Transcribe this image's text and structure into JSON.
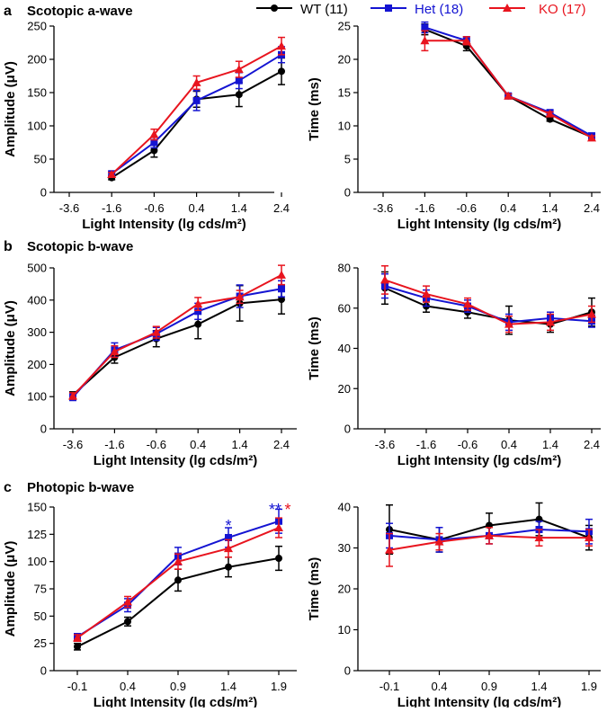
{
  "legend": {
    "position": "top-center",
    "entries": [
      {
        "label": "WT (11)",
        "color": "#000000",
        "marker": "circle"
      },
      {
        "label": "Het (18)",
        "color": "#1414d2",
        "marker": "square"
      },
      {
        "label": "KO (17)",
        "color": "#e8141e",
        "marker": "triangle"
      }
    ]
  },
  "panels": [
    {
      "letter": "a",
      "title": "Scotopic a-wave"
    },
    {
      "letter": "b",
      "title": "Scotopic b-wave"
    },
    {
      "letter": "c",
      "title": "Photopic b-wave"
    }
  ],
  "chart_data": [
    {
      "type": "line",
      "panel": "a",
      "title": "Scotopic a-wave",
      "xlabel": "Light Intensity (lg cds/m²)",
      "ylabel": "Amplitude (μV)",
      "categories": [
        "-3.6",
        "-1.6",
        "-0.6",
        "0.4",
        "1.4",
        "2.4"
      ],
      "ylim": [
        0,
        250
      ],
      "yticks": [
        0,
        50,
        100,
        150,
        200,
        250
      ],
      "series": [
        {
          "name": "WT (11)",
          "color": "#000000",
          "marker": "circle",
          "values": [
            null,
            22,
            63,
            140,
            147,
            182
          ],
          "errors": [
            null,
            3,
            10,
            12,
            18,
            20
          ]
        },
        {
          "name": "Het (18)",
          "color": "#1414d2",
          "marker": "square",
          "values": [
            null,
            28,
            75,
            138,
            168,
            207
          ],
          "errors": [
            null,
            3,
            8,
            15,
            12,
            12
          ]
        },
        {
          "name": "KO (17)",
          "color": "#e8141e",
          "marker": "triangle",
          "values": [
            null,
            27,
            87,
            165,
            185,
            220
          ],
          "errors": [
            null,
            3,
            8,
            10,
            12,
            13
          ]
        }
      ],
      "annotations": []
    },
    {
      "type": "line",
      "panel": "a",
      "xlabel": "Light Intensity (lg cds/m²)",
      "ylabel": "Time (ms)",
      "categories": [
        "-3.6",
        "-1.6",
        "-0.6",
        "0.4",
        "1.4",
        "2.4"
      ],
      "ylim": [
        0,
        25
      ],
      "yticks": [
        0,
        5,
        10,
        15,
        20,
        25
      ],
      "series": [
        {
          "name": "WT (11)",
          "color": "#000000",
          "marker": "circle",
          "values": [
            null,
            24.5,
            22,
            14.5,
            11,
            8.3
          ],
          "errors": [
            null,
            0.8,
            0.7,
            0.3,
            0.3,
            0.3
          ]
        },
        {
          "name": "Het (18)",
          "color": "#1414d2",
          "marker": "square",
          "values": [
            null,
            24.8,
            22.8,
            14.5,
            12,
            8.5
          ],
          "errors": [
            null,
            0.8,
            0.6,
            0.3,
            0.3,
            0.3
          ]
        },
        {
          "name": "KO (17)",
          "color": "#e8141e",
          "marker": "triangle",
          "values": [
            null,
            22.8,
            22.8,
            14.5,
            11.8,
            8.2
          ],
          "errors": [
            null,
            1.5,
            0.6,
            0.3,
            0.3,
            0.3
          ]
        }
      ],
      "annotations": []
    },
    {
      "type": "line",
      "panel": "b",
      "title": "Scotopic b-wave",
      "xlabel": "Light Intensity (lg cds/m²)",
      "ylabel": "Amplitude (μV)",
      "categories": [
        "-3.6",
        "-1.6",
        "-0.6",
        "0.4",
        "1.4",
        "2.4"
      ],
      "ylim": [
        0,
        500
      ],
      "yticks": [
        0,
        100,
        200,
        300,
        400,
        500
      ],
      "series": [
        {
          "name": "WT (11)",
          "color": "#000000",
          "marker": "circle",
          "values": [
            105,
            222,
            280,
            325,
            390,
            402
          ],
          "errors": [
            10,
            18,
            25,
            45,
            55,
            45
          ]
        },
        {
          "name": "Het (18)",
          "color": "#1414d2",
          "marker": "square",
          "values": [
            98,
            245,
            295,
            365,
            412,
            435
          ],
          "errors": [
            10,
            22,
            20,
            25,
            35,
            25
          ]
        },
        {
          "name": "KO (17)",
          "color": "#e8141e",
          "marker": "triangle",
          "values": [
            102,
            240,
            300,
            388,
            410,
            478
          ],
          "errors": [
            10,
            18,
            18,
            20,
            20,
            30
          ]
        }
      ],
      "annotations": []
    },
    {
      "type": "line",
      "panel": "b",
      "xlabel": "Light Intensity (lg cds/m²)",
      "ylabel": "Time (ms)",
      "categories": [
        "-3.6",
        "-1.6",
        "-0.6",
        "0.4",
        "1.4",
        "2.4"
      ],
      "ylim": [
        0,
        80
      ],
      "yticks": [
        0,
        20,
        40,
        60,
        80
      ],
      "series": [
        {
          "name": "WT (11)",
          "color": "#000000",
          "marker": "circle",
          "values": [
            70,
            61,
            58,
            54,
            52,
            58
          ],
          "errors": [
            8,
            3,
            3,
            7,
            4,
            7
          ]
        },
        {
          "name": "Het (18)",
          "color": "#1414d2",
          "marker": "square",
          "values": [
            71,
            65,
            61,
            53,
            55,
            53.5
          ],
          "errors": [
            6,
            4,
            3,
            4,
            3,
            3
          ]
        },
        {
          "name": "KO (17)",
          "color": "#e8141e",
          "marker": "triangle",
          "values": [
            74,
            67,
            62,
            52,
            53,
            57
          ],
          "errors": [
            7,
            4,
            3,
            4,
            4,
            4
          ]
        }
      ],
      "annotations": []
    },
    {
      "type": "line",
      "panel": "c",
      "title": "Photopic b-wave",
      "xlabel": "Light Intensity (lg cds/m²)",
      "ylabel": "Amplitude (μV)",
      "categories": [
        "-0.1",
        "0.4",
        "0.9",
        "1.4",
        "1.9"
      ],
      "ylim": [
        0,
        150
      ],
      "yticks": [
        0,
        25,
        50,
        75,
        100,
        125,
        150
      ],
      "series": [
        {
          "name": "WT (11)",
          "color": "#000000",
          "marker": "circle",
          "values": [
            22,
            45,
            83,
            95,
            103
          ],
          "errors": [
            3,
            4,
            10,
            9,
            11
          ]
        },
        {
          "name": "Het (18)",
          "color": "#1414d2",
          "marker": "square",
          "values": [
            31,
            60,
            105,
            122,
            137
          ],
          "errors": [
            3,
            6,
            8,
            9,
            11
          ]
        },
        {
          "name": "KO (17)",
          "color": "#e8141e",
          "marker": "triangle",
          "values": [
            30,
            63,
            100,
            112,
            131
          ],
          "errors": [
            3,
            5,
            7,
            8,
            9
          ]
        }
      ],
      "annotations": [
        {
          "text": "*",
          "color": "#1414d2",
          "category": "1.4",
          "y": 136
        },
        {
          "text": "**",
          "color": "#1414d2",
          "category": "1.9",
          "y": 151
        },
        {
          "text": "*",
          "color": "#e8141e",
          "category": "1.9",
          "y": 151
        }
      ]
    },
    {
      "type": "line",
      "panel": "c",
      "xlabel": "Light Intensity (lg cds/m²)",
      "ylabel": "Time (ms)",
      "categories": [
        "-0.1",
        "0.4",
        "0.9",
        "1.4",
        "1.9"
      ],
      "ylim": [
        0,
        40
      ],
      "yticks": [
        0,
        10,
        20,
        30,
        40
      ],
      "series": [
        {
          "name": "WT (11)",
          "color": "#000000",
          "marker": "circle",
          "values": [
            34.5,
            32,
            35.5,
            37,
            32.5
          ],
          "errors": [
            6,
            3,
            3,
            4,
            3
          ]
        },
        {
          "name": "Het (18)",
          "color": "#1414d2",
          "marker": "square",
          "values": [
            33,
            32,
            33,
            34.5,
            34
          ],
          "errors": [
            3,
            3,
            2,
            2,
            3
          ]
        },
        {
          "name": "KO (17)",
          "color": "#e8141e",
          "marker": "triangle",
          "values": [
            29.5,
            31.5,
            33,
            32.5,
            32.5
          ],
          "errors": [
            4,
            2,
            2,
            2,
            2
          ]
        }
      ],
      "annotations": []
    }
  ]
}
